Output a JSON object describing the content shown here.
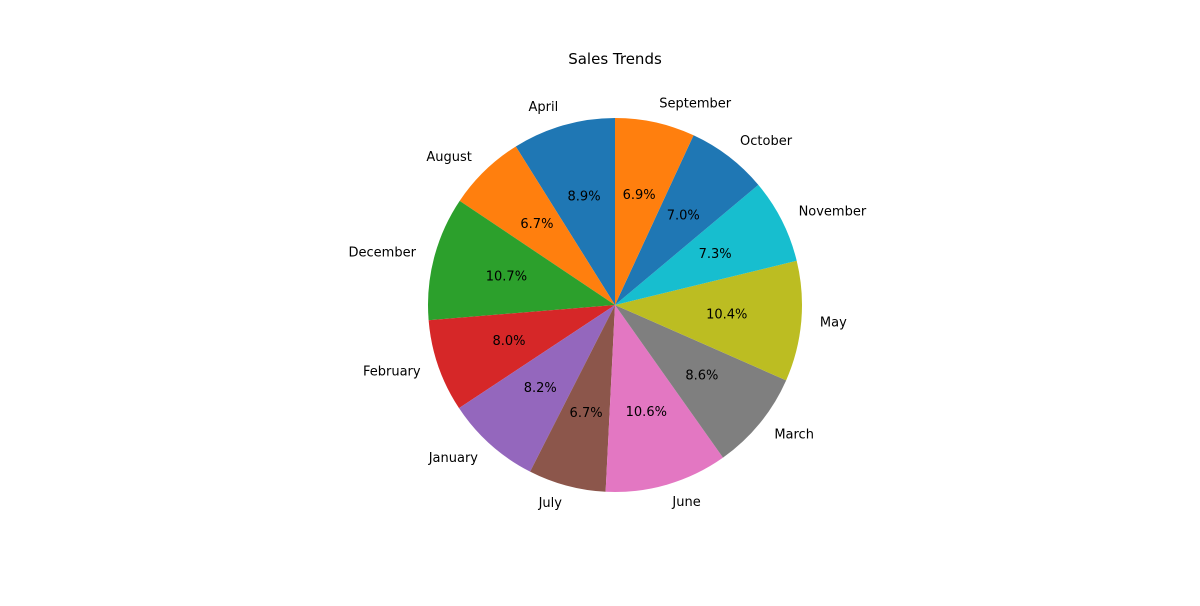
{
  "chart_data": {
    "type": "pie",
    "title": "Sales Trends",
    "labels": [
      "April",
      "August",
      "December",
      "February",
      "January",
      "July",
      "June",
      "March",
      "May",
      "November",
      "October",
      "September"
    ],
    "values": [
      8.9,
      6.7,
      10.7,
      8.0,
      8.2,
      6.7,
      10.6,
      8.6,
      10.4,
      7.3,
      7.0,
      6.9
    ],
    "percent_labels": [
      "8.9%",
      "6.7%",
      "10.7%",
      "8.0%",
      "8.2%",
      "6.7%",
      "10.6%",
      "8.6%",
      "10.4%",
      "7.3%",
      "7.0%",
      "6.9%"
    ],
    "colors": [
      "#1f77b4",
      "#ff7f0e",
      "#2ca02c",
      "#d62728",
      "#9467bd",
      "#8c564b",
      "#e377c2",
      "#7f7f7f",
      "#bcbd22",
      "#17becf",
      "#1f77b4",
      "#ff7f0e"
    ],
    "start_angle_deg": 90,
    "direction": "counterclockwise",
    "legend": "none",
    "grid": false
  }
}
